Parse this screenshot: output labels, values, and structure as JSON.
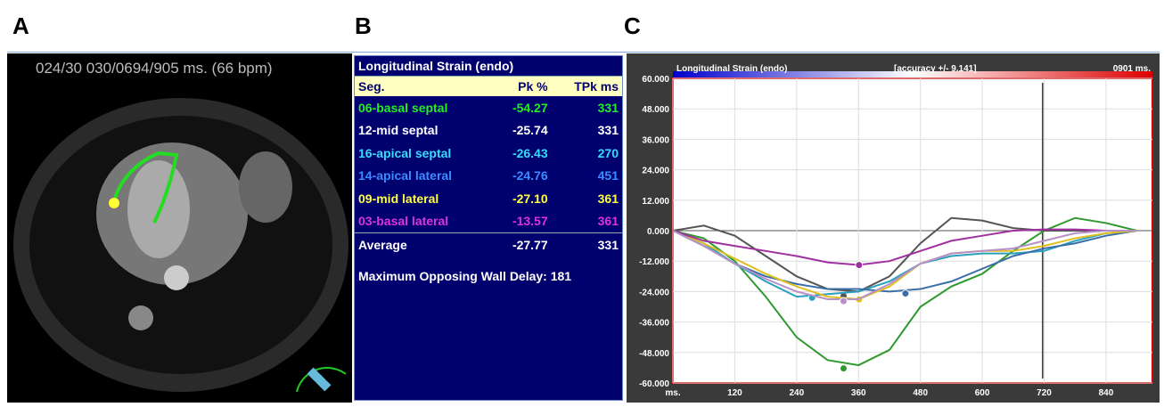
{
  "panels": {
    "a": {
      "label": "A",
      "header": "024/30  030/0694/905 ms.  (66 bpm)"
    },
    "b": {
      "label": "B",
      "title": "Longitudinal Strain (endo)",
      "columns": [
        "Seg.",
        "Pk %",
        "TPk ms"
      ],
      "rows": [
        [
          "06-basal septal",
          "-54.27",
          "331"
        ],
        [
          "12-mid septal",
          "-25.74",
          "331"
        ],
        [
          "16-apical septal",
          "-26.43",
          "270"
        ],
        [
          "14-apical lateral",
          "-24.76",
          "451"
        ],
        [
          "09-mid lateral",
          "-27.10",
          "361"
        ],
        [
          "03-basal lateral",
          "-13.57",
          "361"
        ],
        [
          "Average",
          "-27.77",
          "331"
        ]
      ],
      "row_colors": [
        "#22ee22",
        "#ffffff",
        "#33ddff",
        "#3c8cff",
        "#ffff44",
        "#dd33dd",
        "#ffffff"
      ],
      "footer": "Maximum Opposing Wall Delay: 181"
    },
    "c": {
      "label": "C"
    }
  },
  "chart_data": {
    "type": "line",
    "title": "Longitudinal Strain (endo)",
    "subtitle": "[accuracy +/- 9.141]",
    "time_label": "0901 ms.",
    "x": [
      0,
      60,
      120,
      180,
      240,
      300,
      360,
      420,
      480,
      540,
      600,
      660,
      720,
      780,
      840,
      900
    ],
    "series": [
      {
        "color": "#2f9a2f",
        "values": [
          0,
          -3,
          -12,
          -26,
          -42,
          -51,
          -53,
          -47,
          -30,
          -22,
          -17,
          -8,
          0,
          5,
          3,
          0
        ],
        "peak_x": 331,
        "peak_y": -54.27
      },
      {
        "color": "#555555",
        "values": [
          0,
          2,
          -2,
          -10,
          -18,
          -23,
          -24,
          -18,
          -5,
          5,
          4,
          1,
          0,
          0,
          0,
          0
        ],
        "peak_x": 331,
        "peak_y": -25.74
      },
      {
        "color": "#2aa0c0",
        "values": [
          0,
          -5,
          -13,
          -20,
          -26,
          -25,
          -24,
          -20,
          -13,
          -10,
          -9,
          -9,
          -8,
          -4,
          -1,
          0
        ],
        "peak_x": 270,
        "peak_y": -26.43
      },
      {
        "color": "#3a6ea8",
        "values": [
          0,
          -6,
          -13,
          -18,
          -21,
          -23,
          -23,
          -24,
          -23,
          -20,
          -15,
          -10,
          -7,
          -5,
          -2,
          0
        ],
        "peak_x": 451,
        "peak_y": -24.76
      },
      {
        "color": "#e0c020",
        "values": [
          0,
          -5,
          -11,
          -17,
          -22,
          -26,
          -27,
          -22,
          -13,
          -9,
          -8,
          -8,
          -6,
          -3,
          -1,
          0
        ],
        "peak_x": 361,
        "peak_y": -27.1
      },
      {
        "color": "#a030a0",
        "values": [
          0,
          -4,
          -6,
          -8,
          -10,
          -12.5,
          -13.5,
          -12,
          -8,
          -4,
          -2,
          0,
          0.5,
          0.5,
          0,
          0
        ],
        "peak_x": 361,
        "peak_y": -13.57
      },
      {
        "color": "#b890c8",
        "values": [
          0,
          -6,
          -13,
          -19,
          -24,
          -27,
          -27,
          -21,
          -13,
          -9,
          -8,
          -7,
          -4,
          -1,
          0,
          0
        ],
        "peak_x": 331,
        "peak_y": -27.77
      }
    ],
    "cursor_x": 717,
    "xlim": [
      0,
      930
    ],
    "xticks": [
      {
        "value": 0,
        "label": "ms."
      },
      120,
      240,
      360,
      480,
      600,
      720,
      840
    ],
    "ylim": [
      -60,
      60
    ],
    "yticks": [
      {
        "value": 60,
        "label": "60.000"
      },
      {
        "value": 48,
        "label": "48.000"
      },
      {
        "value": 36,
        "label": "36.000"
      },
      {
        "value": 24,
        "label": "24.000"
      },
      {
        "value": 12,
        "label": "12.000"
      },
      {
        "value": 0,
        "label": "0.000"
      },
      {
        "value": -12,
        "label": "-12.000"
      },
      {
        "value": -24,
        "label": "-24.000"
      },
      {
        "value": -36,
        "label": "-36.000"
      },
      {
        "value": -48,
        "label": "-48.000"
      },
      {
        "value": -60,
        "label": "-60.000"
      }
    ],
    "grid": true
  }
}
